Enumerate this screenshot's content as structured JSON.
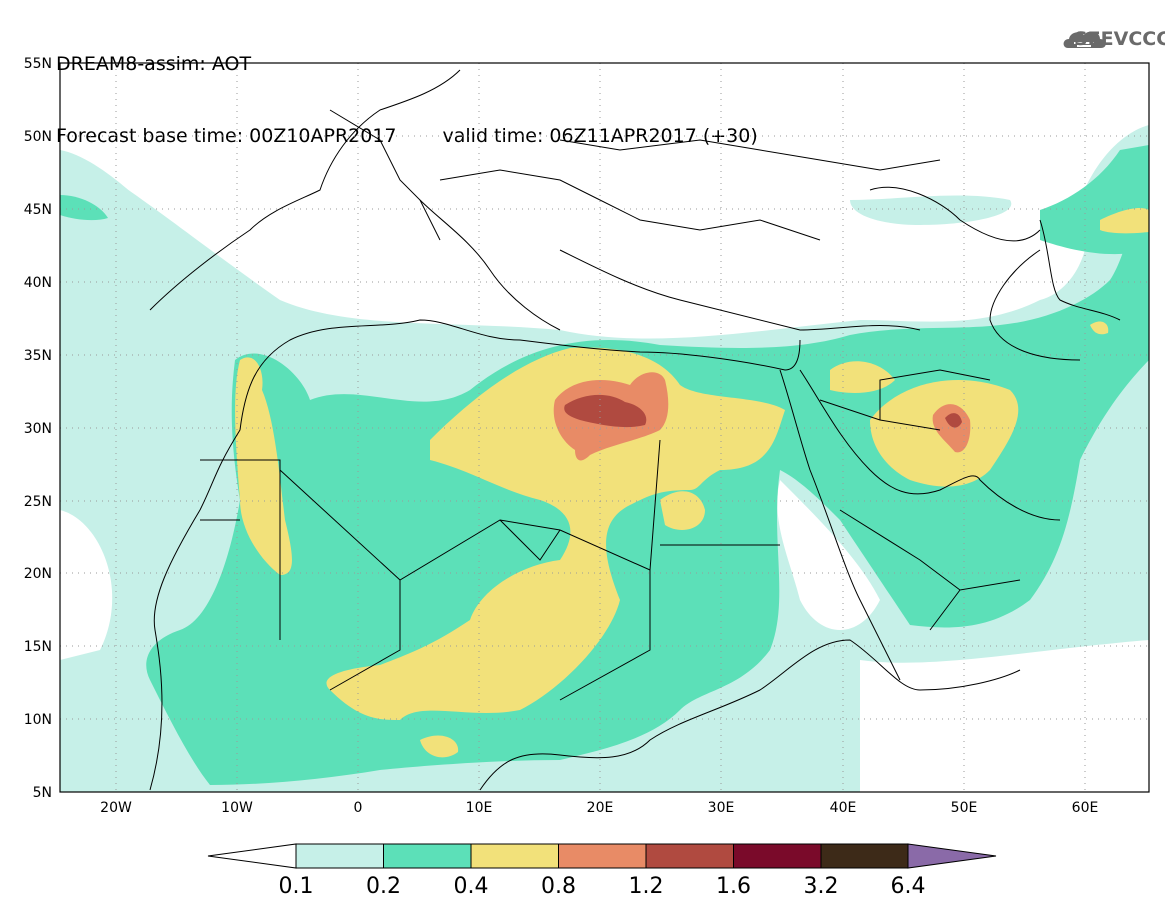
{
  "header": {
    "line1": "DREAM8-assim: AOT",
    "line2_base": "Forecast base time: 00Z10APR2017",
    "line2_valid": "valid time: 06Z11APR2017 (+30)"
  },
  "logo": {
    "name": "cloud-logo-icon",
    "text": "SEEVCCC",
    "color": "#6a6a6a"
  },
  "map": {
    "lat_labels": [
      "55N",
      "50N",
      "45N",
      "40N",
      "35N",
      "30N",
      "25N",
      "20N",
      "15N",
      "10N",
      "5N"
    ],
    "lon_labels": [
      "20W",
      "10W",
      "0",
      "10E",
      "20E",
      "30E",
      "40E",
      "50E",
      "60E"
    ],
    "lat_range": [
      5,
      55
    ],
    "lon_range": [
      -25,
      65
    ],
    "grid": "dotted",
    "field": "AOT"
  },
  "colorbar": {
    "labels": [
      "0.1",
      "0.2",
      "0.4",
      "0.8",
      "1.2",
      "1.6",
      "3.2",
      "6.4"
    ],
    "colors": [
      "#ffffff",
      "#c6f0e8",
      "#5ce0b8",
      "#f2e17a",
      "#e88b66",
      "#b04a40",
      "#7a0a2a",
      "#3d2a18",
      "#8a6aa8"
    ]
  }
}
